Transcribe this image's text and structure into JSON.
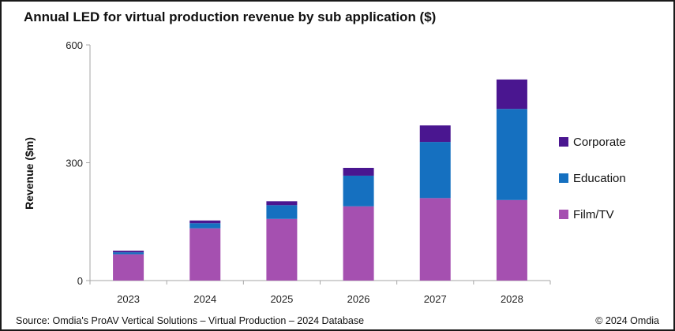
{
  "chart_data": {
    "type": "bar",
    "stacked": true,
    "title": "Annual LED for virtual production revenue by sub application ($)",
    "ylabel": "Revenue ($m)",
    "xlabel": "",
    "categories": [
      "2023",
      "2024",
      "2025",
      "2026",
      "2027",
      "2028"
    ],
    "ylim": [
      0,
      600
    ],
    "yticks": [
      0,
      300,
      600
    ],
    "grid": false,
    "legend_position": "right",
    "series": [
      {
        "name": "Film/TV",
        "color": "#a550b0",
        "values": [
          67,
          133,
          157,
          189,
          210,
          205
        ]
      },
      {
        "name": "Education",
        "color": "#1570c0",
        "values": [
          5,
          13,
          35,
          78,
          143,
          232
        ]
      },
      {
        "name": "Corporate",
        "color": "#4a1690",
        "values": [
          4,
          7,
          10,
          20,
          42,
          75
        ]
      }
    ],
    "legend_order": [
      "Corporate",
      "Education",
      "Film/TV"
    ]
  },
  "footer": {
    "source": "Source: Omdia's ProAV Vertical Solutions – Virtual Production – 2024 Database",
    "copyright": "© 2024 Omdia"
  }
}
